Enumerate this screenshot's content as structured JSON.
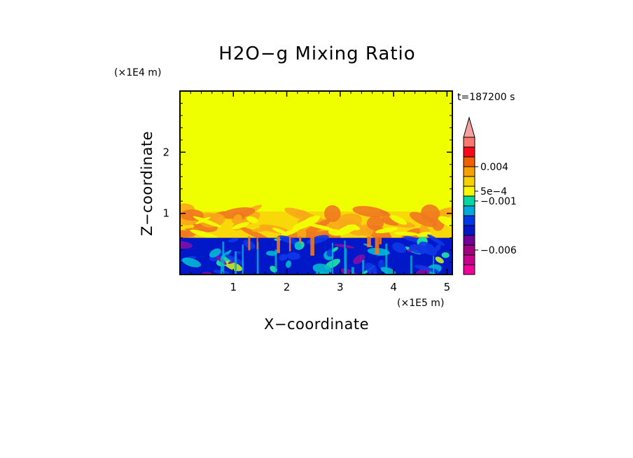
{
  "chart_data": {
    "type": "heatmap",
    "title": "H2O−g Mixing Ratio",
    "xlabel": "X−coordinate",
    "ylabel": "Z−coordinate",
    "x_scale_label": "(×1E5 m)",
    "y_scale_label": "(×1E4 m)",
    "time_label": "t=187200 s",
    "xlim": [
      0,
      5.1
    ],
    "ylim": [
      0,
      3.0
    ],
    "x_ticks": [
      {
        "value": 1,
        "label": "1"
      },
      {
        "value": 2,
        "label": "2"
      },
      {
        "value": 3,
        "label": "3"
      },
      {
        "value": 4,
        "label": "4"
      },
      {
        "value": 5,
        "label": "5"
      }
    ],
    "y_ticks": [
      {
        "value": 1,
        "label": "1"
      },
      {
        "value": 2,
        "label": "2"
      }
    ],
    "layers": [
      {
        "name": "upper",
        "z_range": [
          1.03,
          3.0
        ],
        "color": "#f0ff00"
      },
      {
        "name": "transition",
        "z_range": [
          0.6,
          1.03
        ],
        "colors": [
          "#f8d808",
          "#f8a818",
          "#f07820"
        ]
      },
      {
        "name": "lower",
        "z_range": [
          0.0,
          0.6
        ],
        "colors": [
          "#0018c8",
          "#1038e8",
          "#00b8d0",
          "#20e8a0",
          "#c8f020",
          "#8010a8"
        ]
      }
    ],
    "colorbar": {
      "colors": [
        "#f00098",
        "#c80090",
        "#a00080",
        "#700098",
        "#0018c8",
        "#0038e8",
        "#00a8e0",
        "#00d8a0",
        "#f8f800",
        "#f8d000",
        "#f8a000",
        "#f06000",
        "#f80818",
        "#f87870",
        "#f8a0a0"
      ],
      "labels": [
        {
          "index": 11,
          "label": "0.004"
        },
        {
          "index": 8.5,
          "label": "5e−4"
        },
        {
          "index": 7.5,
          "label": "−0.001"
        },
        {
          "index": 2.5,
          "label": "−0.006"
        }
      ]
    }
  }
}
